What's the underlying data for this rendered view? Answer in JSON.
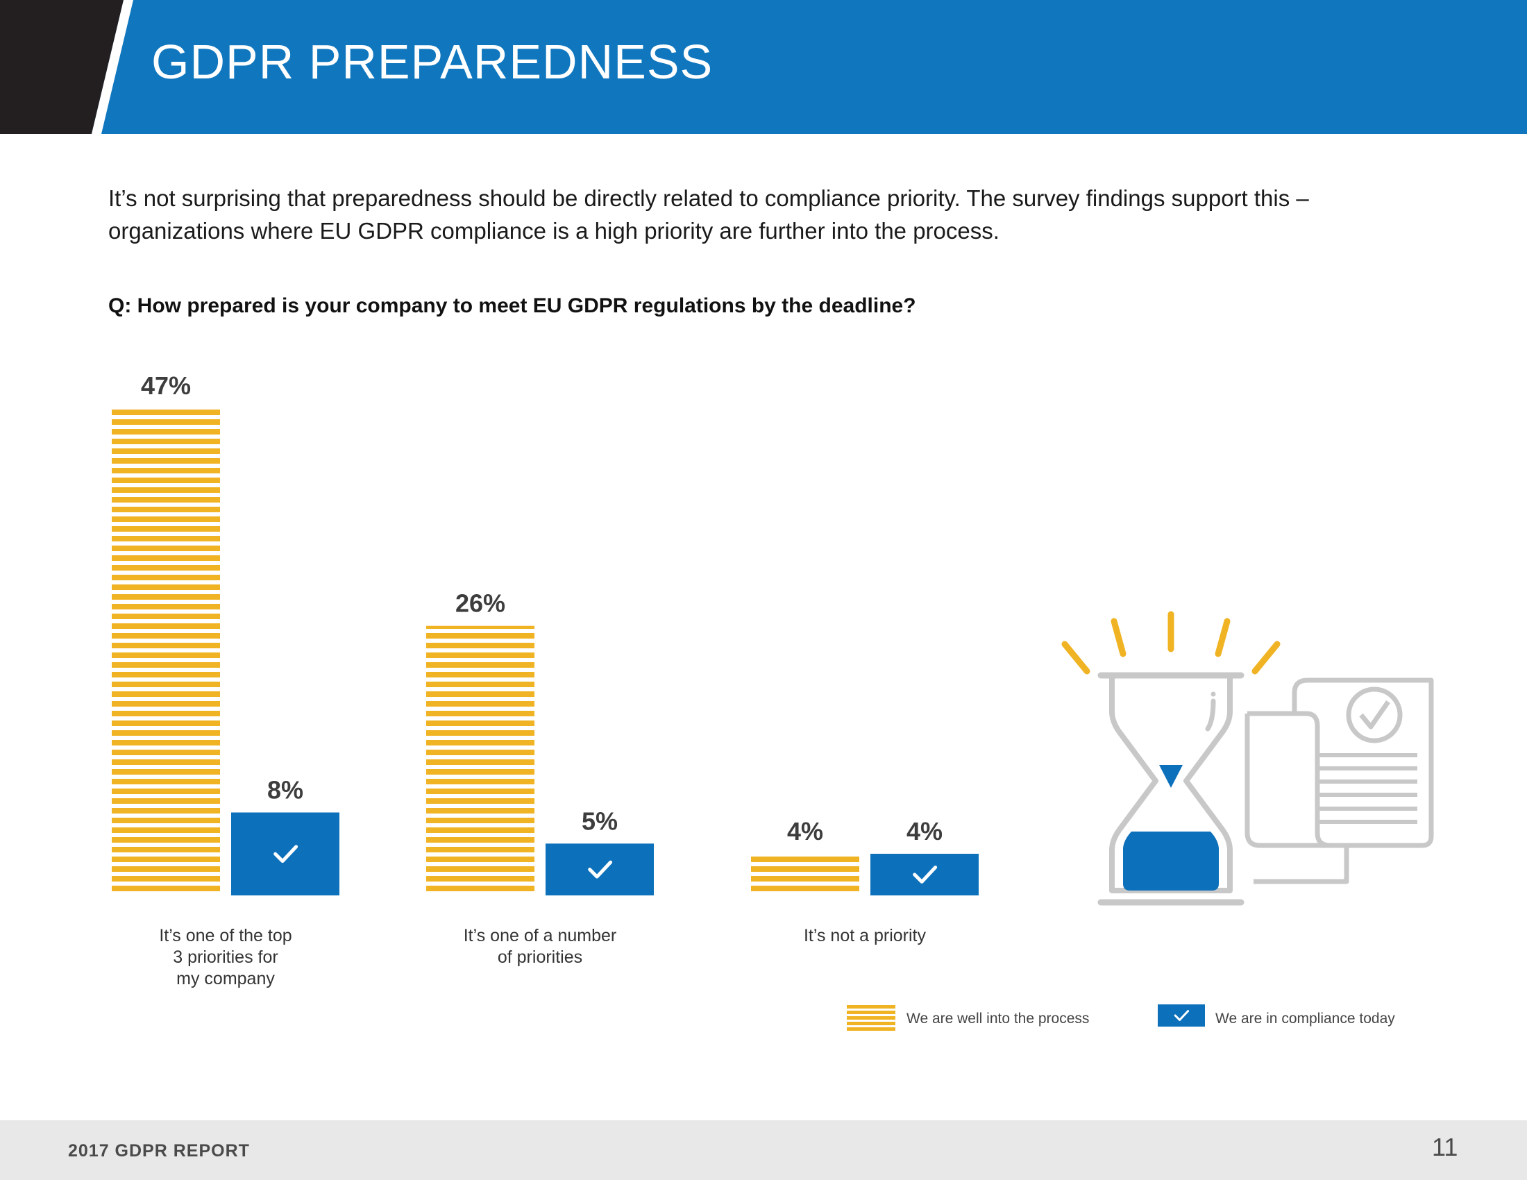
{
  "header": {
    "title": "GDPR PREPAREDNESS"
  },
  "intro": "It’s not surprising that preparedness should be directly related to compliance priority. The survey findings support this – organizations where EU GDPR compliance is a high priority are further into the process.",
  "question": "Q: How prepared is your company to meet EU GDPR regulations by the deadline?",
  "colors": {
    "yellow": "#f0b323",
    "blue": "#0d70bb",
    "header_blue": "#1077bf",
    "gray": "#c8c8c8"
  },
  "chart_data": {
    "type": "bar",
    "title": "Q: How prepared is your company to meet EU GDPR regulations by the deadline?",
    "categories": [
      [
        "It’s one of the top",
        "3 priorities for",
        "my company"
      ],
      [
        "It’s one of a number",
        "of priorities"
      ],
      [
        "It’s not a priority"
      ]
    ],
    "series": [
      {
        "name": "We are well into the process",
        "style": "striped-yellow",
        "values": [
          47,
          26,
          4
        ],
        "labels": [
          "47%",
          "26%",
          "4%"
        ]
      },
      {
        "name": "We are in compliance today",
        "style": "check-blue",
        "values": [
          8,
          5,
          4
        ],
        "labels": [
          "8%",
          "5%",
          "4%"
        ]
      }
    ],
    "ylim": [
      0,
      47
    ],
    "xlabel": "",
    "ylabel": "",
    "legend": "bottom-right",
    "grid": false
  },
  "illustration": {
    "icon": "hourglass-document-icon"
  },
  "footer": {
    "title": "2017 GDPR REPORT",
    "page_number": "11"
  }
}
